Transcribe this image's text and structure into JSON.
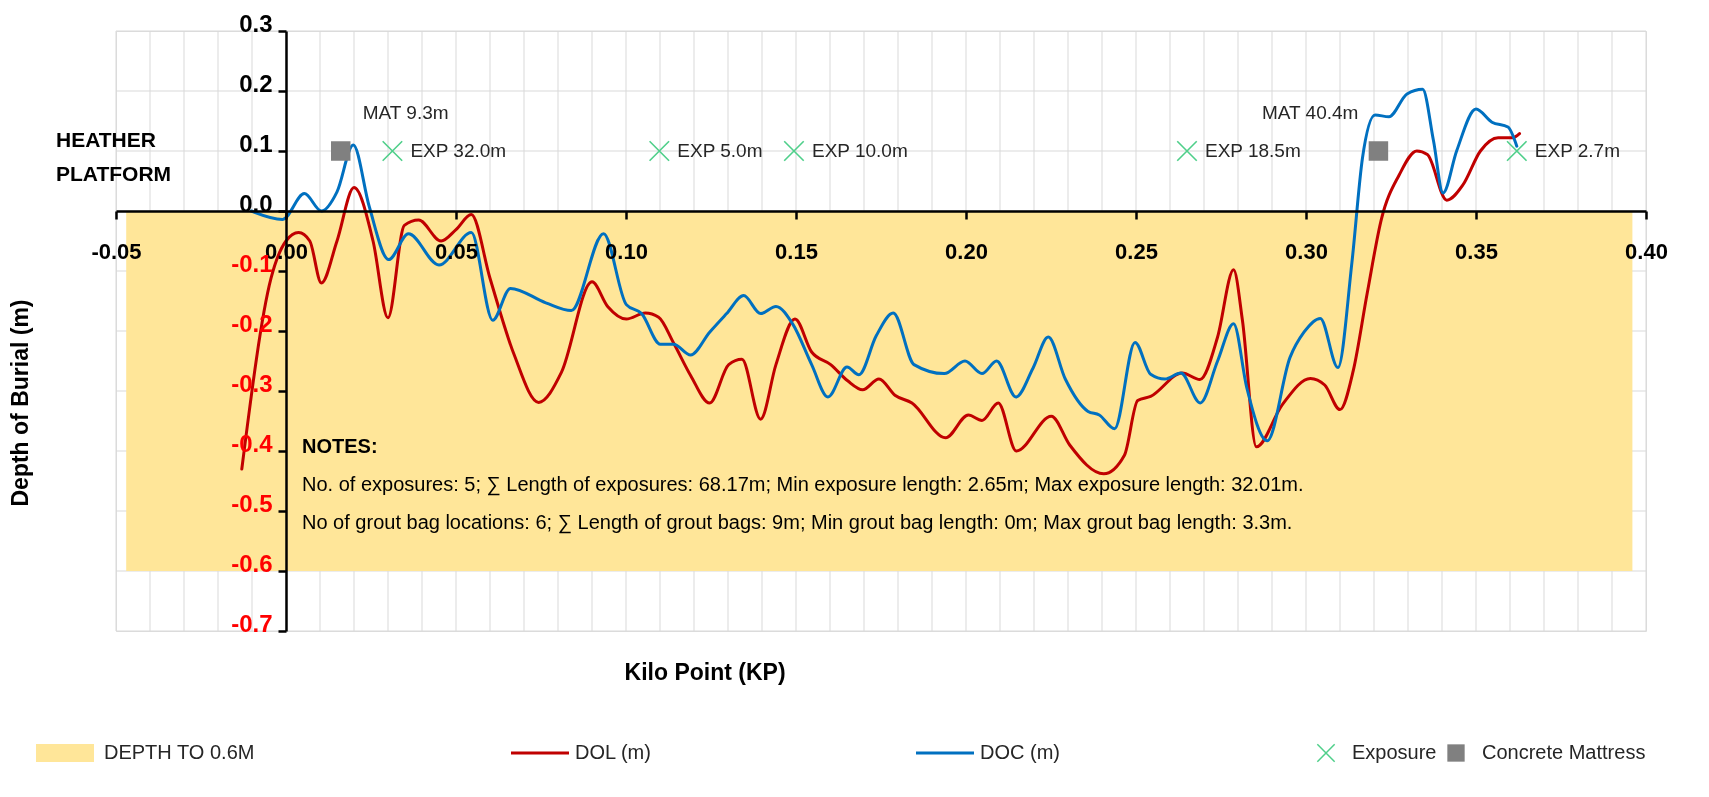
{
  "chart_data": {
    "type": "line",
    "xlabel": "Kilo Point (KP)",
    "ylabel": "Depth of Burial (m)",
    "xlim": [
      -0.05,
      0.4
    ],
    "ylim": [
      -0.7,
      0.3
    ],
    "xticks": [
      {
        "value": -0.05,
        "label": "-0.05"
      },
      {
        "value": -0.04,
        "label": null
      },
      {
        "value": -0.03,
        "label": null
      },
      {
        "value": -0.02,
        "label": null
      },
      {
        "value": -0.01,
        "label": null
      },
      {
        "value": 0,
        "label": "0.00"
      },
      {
        "value": 0.01,
        "label": null
      },
      {
        "value": 0.02,
        "label": null
      },
      {
        "value": 0.03,
        "label": null
      },
      {
        "value": 0.04,
        "label": null
      },
      {
        "value": 0.05,
        "label": "0.05"
      },
      {
        "value": 0.06,
        "label": null
      },
      {
        "value": 0.07,
        "label": null
      },
      {
        "value": 0.08,
        "label": null
      },
      {
        "value": 0.09,
        "label": null
      },
      {
        "value": 0.1,
        "label": "0.10"
      },
      {
        "value": 0.11,
        "label": null
      },
      {
        "value": 0.12,
        "label": null
      },
      {
        "value": 0.13,
        "label": null
      },
      {
        "value": 0.14,
        "label": null
      },
      {
        "value": 0.15,
        "label": "0.15"
      },
      {
        "value": 0.16,
        "label": null
      },
      {
        "value": 0.17,
        "label": null
      },
      {
        "value": 0.18,
        "label": null
      },
      {
        "value": 0.19,
        "label": null
      },
      {
        "value": 0.2,
        "label": "0.20"
      },
      {
        "value": 0.21,
        "label": null
      },
      {
        "value": 0.22,
        "label": null
      },
      {
        "value": 0.23,
        "label": null
      },
      {
        "value": 0.24,
        "label": null
      },
      {
        "value": 0.25,
        "label": "0.25"
      },
      {
        "value": 0.26,
        "label": null
      },
      {
        "value": 0.27,
        "label": null
      },
      {
        "value": 0.28,
        "label": null
      },
      {
        "value": 0.29,
        "label": null
      },
      {
        "value": 0.3,
        "label": "0.30"
      },
      {
        "value": 0.31,
        "label": null
      },
      {
        "value": 0.32,
        "label": null
      },
      {
        "value": 0.33,
        "label": null
      },
      {
        "value": 0.34,
        "label": null
      },
      {
        "value": 0.35,
        "label": "0.35"
      },
      {
        "value": 0.36,
        "label": null
      },
      {
        "value": 0.37,
        "label": null
      },
      {
        "value": 0.38,
        "label": null
      },
      {
        "value": 0.39,
        "label": null
      },
      {
        "value": 0.4,
        "label": "0.40"
      }
    ],
    "yticks": [
      -0.7,
      -0.6,
      -0.5,
      -0.4,
      -0.3,
      -0.2,
      -0.1,
      {
        "value": 0,
        "label": "0.0"
      },
      0.1,
      0.2,
      0.3
    ],
    "grid": true,
    "legend": "bottom",
    "annotations": [
      "HEATHER\nPLATFORM",
      "NOTES:",
      "No. of exposures: 5; ∑ Length of exposures: 68.17m; Min exposure length: 2.65m; Max exposure length: 32.01m.",
      "No of grout bag locations: 6; ∑ Length of grout bags: 9m; Min grout bag length: 0m; Max grout bag length: 3.3m."
    ],
    "series": [
      {
        "name": "DEPTH TO 0.6M",
        "type": "area",
        "color": "#ffe699",
        "x": [
          -0.047,
          0.396
        ],
        "values": [
          -0.6,
          -0.6
        ]
      },
      {
        "name": "DOL (m)",
        "color": "#c00000",
        "line_style": "solid",
        "x": [
          -0.013,
          -0.0044,
          0.0,
          0.0037,
          0.007,
          0.0104,
          0.015,
          0.02,
          0.0256,
          0.03,
          0.0348,
          0.039,
          0.0456,
          0.05,
          0.0545,
          0.06,
          0.067,
          0.0743,
          0.081,
          0.09,
          0.0946,
          0.1001,
          0.1057,
          0.1096,
          0.114,
          0.119,
          0.1246,
          0.1302,
          0.1341,
          0.1396,
          0.1441,
          0.1497,
          0.1546,
          0.1602,
          0.1652,
          0.1696,
          0.1744,
          0.1791,
          0.1841,
          0.194,
          0.2007,
          0.2047,
          0.2095,
          0.2148,
          0.2251,
          0.2305,
          0.2405,
          0.2466,
          0.2505,
          0.2543,
          0.2636,
          0.2688,
          0.274,
          0.2787,
          0.2813,
          0.2854,
          0.293,
          0.3013,
          0.3055,
          0.31,
          0.3139,
          0.318,
          0.3222,
          0.3274,
          0.3326,
          0.3357,
          0.3414,
          0.3461,
          0.3513,
          0.3565,
          0.3607,
          0.3628
        ],
        "values": [
          -0.43,
          -0.112,
          -0.05,
          -0.036,
          -0.05,
          -0.12,
          -0.05,
          0.039,
          -0.05,
          -0.178,
          -0.024,
          -0.015,
          -0.05,
          -0.031,
          -0.006,
          -0.112,
          -0.238,
          -0.319,
          -0.269,
          -0.118,
          -0.159,
          -0.18,
          -0.17,
          -0.177,
          -0.22,
          -0.274,
          -0.32,
          -0.256,
          -0.247,
          -0.347,
          -0.256,
          -0.18,
          -0.235,
          -0.256,
          -0.283,
          -0.298,
          -0.28,
          -0.307,
          -0.32,
          -0.378,
          -0.34,
          -0.349,
          -0.32,
          -0.4,
          -0.342,
          -0.39,
          -0.438,
          -0.407,
          -0.316,
          -0.309,
          -0.27,
          -0.281,
          -0.21,
          -0.098,
          -0.182,
          -0.393,
          -0.323,
          -0.279,
          -0.29,
          -0.331,
          -0.266,
          -0.137,
          -0.013,
          0.06,
          0.1,
          0.094,
          0.018,
          0.043,
          0.1,
          0.122,
          0.122,
          0.129
        ]
      },
      {
        "name": "DOC (m)",
        "color": "#0070c0",
        "line_style": "solid",
        "x": [
          -0.0102,
          -0.001,
          0.0054,
          0.0104,
          0.015,
          0.0198,
          0.0245,
          0.0302,
          0.036,
          0.045,
          0.0545,
          0.0608,
          0.066,
          0.0764,
          0.0839,
          0.0934,
          0.1001,
          0.1046,
          0.1101,
          0.114,
          0.119,
          0.1246,
          0.1296,
          0.1346,
          0.1396,
          0.1441,
          0.1491,
          0.1546,
          0.1594,
          0.165,
          0.1685,
          0.1736,
          0.1786,
          0.1847,
          0.1936,
          0.1997,
          0.2047,
          0.209,
          0.2147,
          0.2197,
          0.2242,
          0.2292,
          0.2359,
          0.2392,
          0.2437,
          0.2497,
          0.2543,
          0.2585,
          0.2632,
          0.2689,
          0.274,
          0.2787,
          0.2826,
          0.2886,
          0.2953,
          0.2994,
          0.3042,
          0.3094,
          0.3135,
          0.3166,
          0.3203,
          0.3244,
          0.3297,
          0.3343,
          0.3375,
          0.3403,
          0.3443,
          0.35,
          0.3547,
          0.3594,
          0.362
        ],
        "values": [
          0.0,
          -0.014,
          0.029,
          0.0,
          0.032,
          0.11,
          0.007,
          -0.081,
          -0.038,
          -0.09,
          -0.036,
          -0.182,
          -0.129,
          -0.153,
          -0.166,
          -0.038,
          -0.156,
          -0.171,
          -0.222,
          -0.222,
          -0.24,
          -0.202,
          -0.171,
          -0.141,
          -0.171,
          -0.159,
          -0.189,
          -0.256,
          -0.31,
          -0.26,
          -0.273,
          -0.208,
          -0.17,
          -0.256,
          -0.271,
          -0.25,
          -0.271,
          -0.25,
          -0.31,
          -0.262,
          -0.21,
          -0.28,
          -0.334,
          -0.34,
          -0.363,
          -0.219,
          -0.272,
          -0.28,
          -0.27,
          -0.32,
          -0.25,
          -0.188,
          -0.295,
          -0.383,
          -0.244,
          -0.202,
          -0.179,
          -0.261,
          -0.086,
          0.088,
          0.16,
          0.157,
          0.195,
          0.203,
          0.117,
          0.03,
          0.1,
          0.17,
          0.148,
          0.14,
          0.108
        ]
      },
      {
        "name": "Exposure",
        "type": "scatter",
        "color": "#4fcf8a",
        "marker": "cross",
        "x": [
          0.0313,
          0.1098,
          0.1494,
          0.265,
          0.362
        ],
        "values": [
          0.1,
          0.1,
          0.1,
          0.1,
          0.1
        ],
        "value_labels": [
          "EXP 32.0m",
          "EXP 5.0m",
          "EXP 10.0m",
          "EXP 18.5m",
          "EXP 2.7m"
        ]
      },
      {
        "name": "Concrete Mattress",
        "type": "scatter",
        "color": "#808080",
        "marker": "square",
        "x": [
          0.0161,
          0.3213
        ],
        "values": [
          0.1,
          0.1
        ],
        "value_labels": [
          "MAT 9.3m",
          "MAT 40.4m"
        ]
      }
    ]
  }
}
